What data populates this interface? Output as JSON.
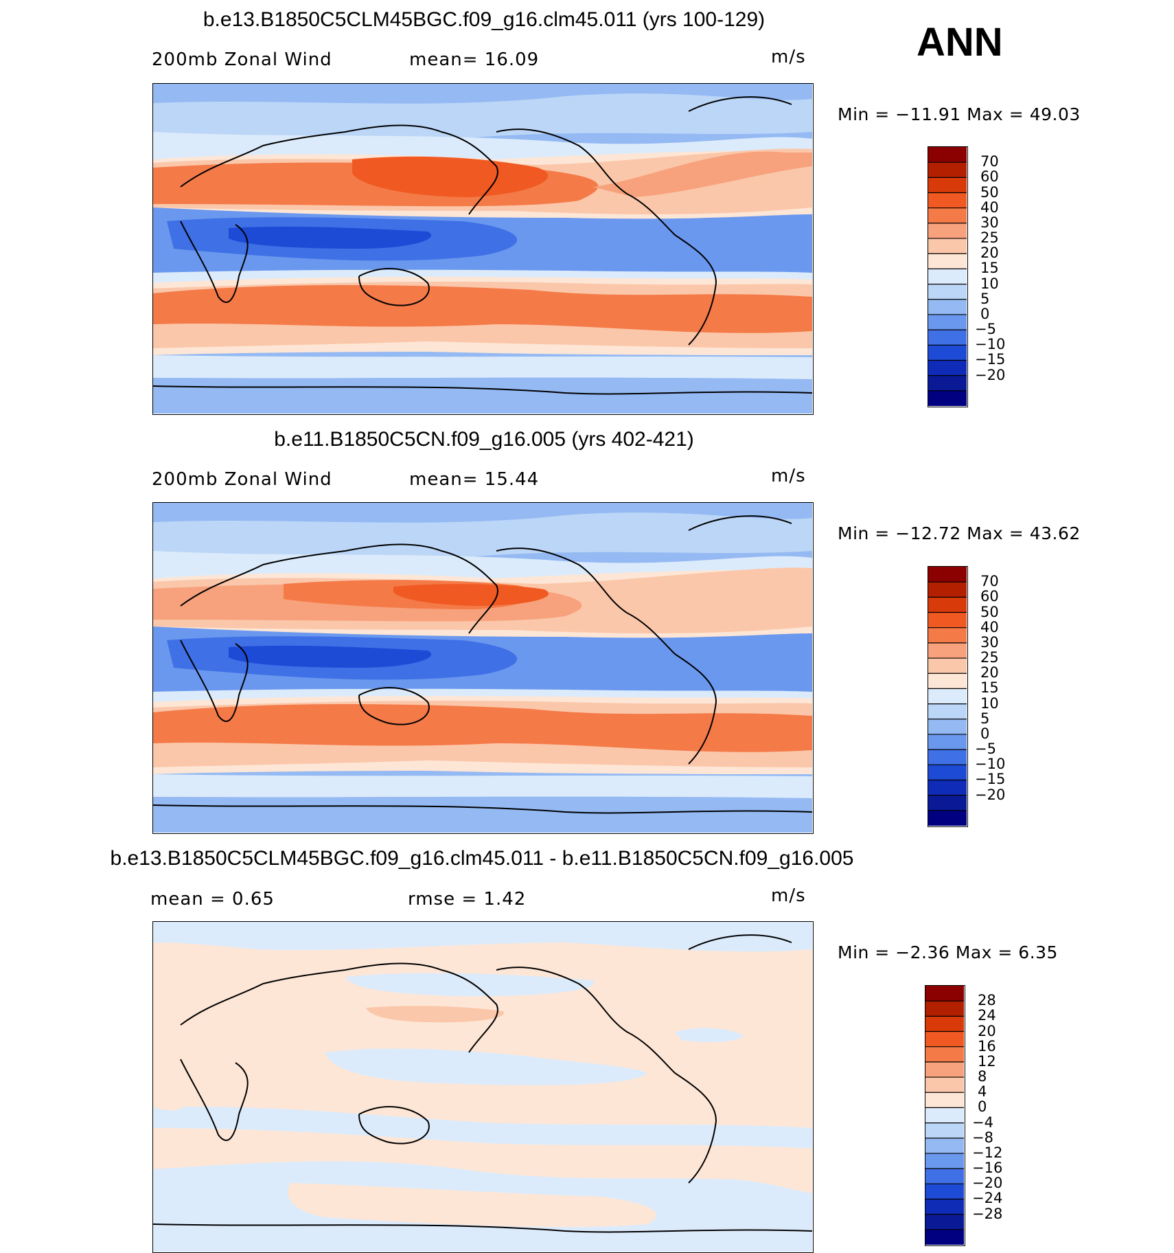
{
  "season": "ANN",
  "panels": [
    {
      "title": "b.e13.B1850C5CLM45BGC.f09_g16.clm45.011 (yrs 100-129)",
      "left_label": "200mb  Zonal Wind",
      "mid_label": "mean=   16.09",
      "units": "m/s",
      "minmax": "Min  =  −11.91  Max  =    49.03",
      "colorbar_labels": [
        "70",
        "60",
        "50",
        "40",
        "30",
        "25",
        "20",
        "15",
        "10",
        "5",
        "0",
        "−5",
        "−10",
        "−15",
        "−20"
      ],
      "colorbar_colors": [
        "#8b0000",
        "#b22000",
        "#d93a0a",
        "#f05a22",
        "#f47a48",
        "#f7a27c",
        "#fbc7aa",
        "#fde6d6",
        "#dcebfb",
        "#bcd6f7",
        "#94b9f3",
        "#6a98ee",
        "#3f70e6",
        "#1e4bd6",
        "#0f2cb8",
        "#0a1a96",
        "#000080"
      ]
    },
    {
      "title": "b.e11.B1850C5CN.f09_g16.005 (yrs 402-421)",
      "left_label": "200mb  Zonal Wind",
      "mid_label": "mean=   15.44",
      "units": "m/s",
      "minmax": "Min  =  −12.72  Max  =    43.62",
      "colorbar_labels": [
        "70",
        "60",
        "50",
        "40",
        "30",
        "25",
        "20",
        "15",
        "10",
        "5",
        "0",
        "−5",
        "−10",
        "−15",
        "−20"
      ],
      "colorbar_colors": [
        "#8b0000",
        "#b22000",
        "#d93a0a",
        "#f05a22",
        "#f47a48",
        "#f7a27c",
        "#fbc7aa",
        "#fde6d6",
        "#dcebfb",
        "#bcd6f7",
        "#94b9f3",
        "#6a98ee",
        "#3f70e6",
        "#1e4bd6",
        "#0f2cb8",
        "#0a1a96",
        "#000080"
      ]
    },
    {
      "title": "b.e13.B1850C5CLM45BGC.f09_g16.clm45.011 - b.e11.B1850C5CN.f09_g16.005",
      "left_label": "mean  =     0.65",
      "mid_label": "rmse  =     1.42",
      "units": "m/s",
      "minmax": "Min  =    −2.36  Max  =     6.35",
      "colorbar_labels": [
        "28",
        "24",
        "20",
        "16",
        "12",
        "8",
        "4",
        "0",
        "−4",
        "−8",
        "−12",
        "−16",
        "−20",
        "−24",
        "−28"
      ],
      "colorbar_colors": [
        "#8b0000",
        "#b22000",
        "#d93a0a",
        "#f05a22",
        "#f47a48",
        "#f7a27c",
        "#fbc7aa",
        "#fde6d6",
        "#dcebfb",
        "#bcd6f7",
        "#94b9f3",
        "#6a98ee",
        "#3f70e6",
        "#1e4bd6",
        "#0f2cb8",
        "#0a1a96",
        "#000080"
      ]
    }
  ],
  "chart_data": [
    {
      "type": "heatmap",
      "title": "b.e13.B1850C5CLM45BGC.f09_g16.clm45.011 (yrs 100-129)",
      "field": "200mb Zonal Wind",
      "units": "m/s",
      "mean": 16.09,
      "min": -11.91,
      "max": 49.03,
      "contour_levels": [
        -20,
        -15,
        -10,
        -5,
        0,
        5,
        10,
        15,
        20,
        25,
        30,
        40,
        50,
        60,
        70
      ]
    },
    {
      "type": "heatmap",
      "title": "b.e11.B1850C5CN.f09_g16.005 (yrs 402-421)",
      "field": "200mb Zonal Wind",
      "units": "m/s",
      "mean": 15.44,
      "min": -12.72,
      "max": 43.62,
      "contour_levels": [
        -20,
        -15,
        -10,
        -5,
        0,
        5,
        10,
        15,
        20,
        25,
        30,
        40,
        50,
        60,
        70
      ]
    },
    {
      "type": "heatmap",
      "title": "b.e13.B1850C5CLM45BGC.f09_g16.clm45.011 - b.e11.B1850C5CN.f09_g16.005",
      "units": "m/s",
      "mean": 0.65,
      "rmse": 1.42,
      "min": -2.36,
      "max": 6.35,
      "contour_levels": [
        -28,
        -24,
        -20,
        -16,
        -12,
        -8,
        -4,
        0,
        4,
        8,
        12,
        16,
        20,
        24,
        28
      ]
    }
  ]
}
